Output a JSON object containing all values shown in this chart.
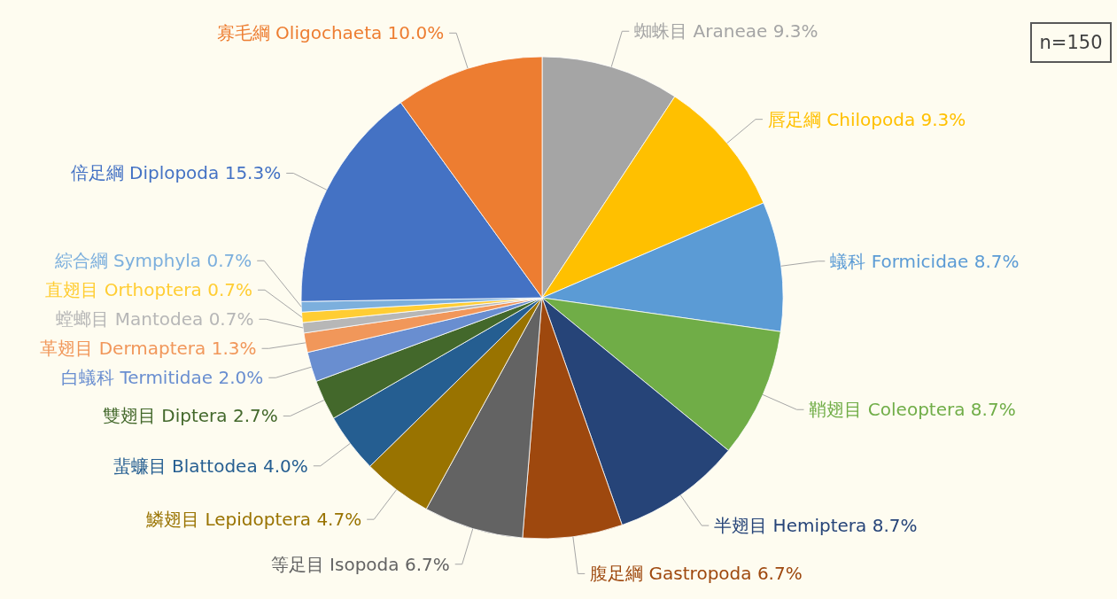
{
  "chart_data": {
    "type": "pie",
    "categories": [
      "蜘蛛目 Araneae",
      "唇足綱 Chilopoda",
      "蟻科 Formicidae",
      "鞘翅目 Coleoptera",
      "半翅目 Hemiptera",
      "腹足綱 Gastropoda",
      "等足目 Isopoda",
      "鱗翅目 Lepidoptera",
      "蜚蠊目 Blattodea",
      "雙翅目 Diptera",
      "白蟻科 Termitidae",
      "革翅目 Dermaptera",
      "螳螂目 Mantodea",
      "直翅目 Orthoptera",
      "綜合綱 Symphyla",
      "倍足綱 Diplopoda",
      "寡毛綱 Oligochaeta"
    ],
    "values": [
      9.3,
      9.3,
      8.7,
      8.7,
      8.7,
      6.7,
      6.7,
      4.7,
      4.0,
      2.7,
      2.0,
      1.3,
      0.7,
      0.7,
      0.7,
      15.3,
      10.0
    ],
    "value_labels": [
      "9.3%",
      "9.3%",
      "8.7%",
      "8.7%",
      "8.7%",
      "6.7%",
      "6.7%",
      "4.7%",
      "4.0%",
      "2.7%",
      "2.0%",
      "1.3%",
      "0.7%",
      "0.7%",
      "0.7%",
      "15.3%",
      "10.0%"
    ],
    "colors": [
      "#a5a5a5",
      "#ffc000",
      "#5b9bd5",
      "#70ad47",
      "#264478",
      "#9e480e",
      "#636363",
      "#997300",
      "#255e91",
      "#43682b",
      "#698ed0",
      "#f1975a",
      "#b7b7b7",
      "#ffcd33",
      "#7cafdd",
      "#4472c4",
      "#ed7d31"
    ],
    "annotations": [
      "n=150"
    ]
  }
}
